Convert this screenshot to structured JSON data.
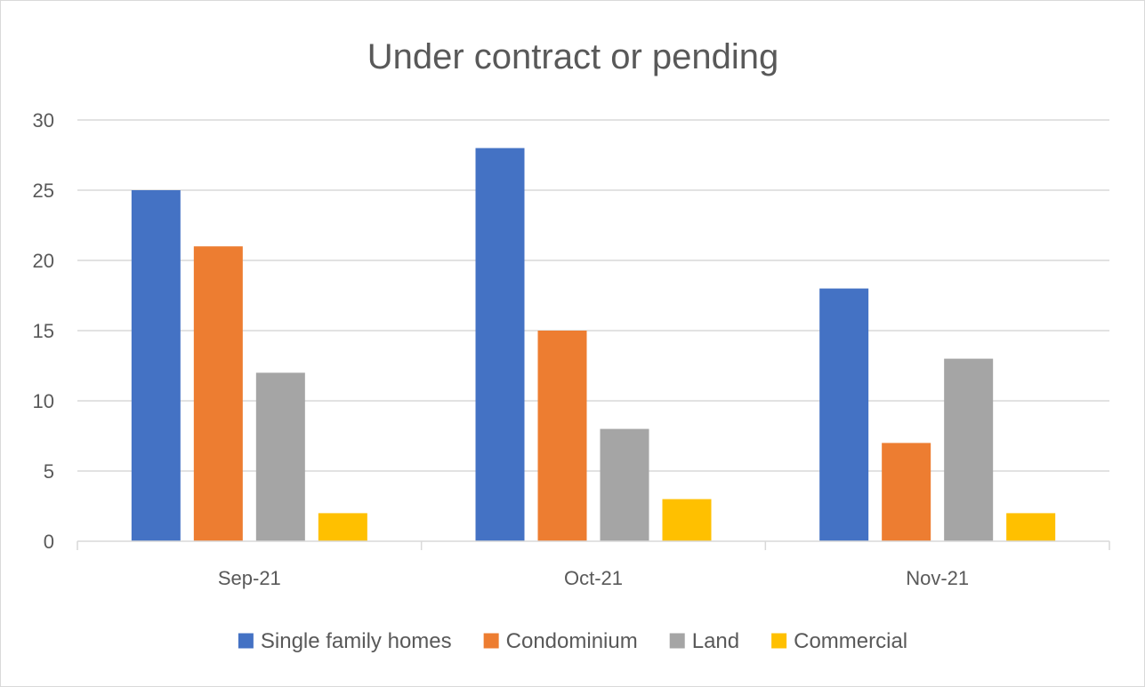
{
  "chart_data": {
    "type": "bar",
    "title": "Under contract or pending",
    "categories": [
      "Sep-21",
      "Oct-21",
      "Nov-21"
    ],
    "series": [
      {
        "name": "Single family homes",
        "color": "#4472c4",
        "values": [
          25,
          28,
          18
        ]
      },
      {
        "name": "Condominium",
        "color": "#ed7d31",
        "values": [
          21,
          15,
          7
        ]
      },
      {
        "name": "Land",
        "color": "#a5a5a5",
        "values": [
          12,
          8,
          13
        ]
      },
      {
        "name": "Commercial",
        "color": "#ffc000",
        "values": [
          2,
          3,
          2
        ]
      }
    ],
    "ylim": [
      0,
      30
    ],
    "yticks": [
      "0",
      "5",
      "10",
      "15",
      "20",
      "25",
      "30"
    ],
    "grid": true,
    "legend_position": "bottom"
  }
}
